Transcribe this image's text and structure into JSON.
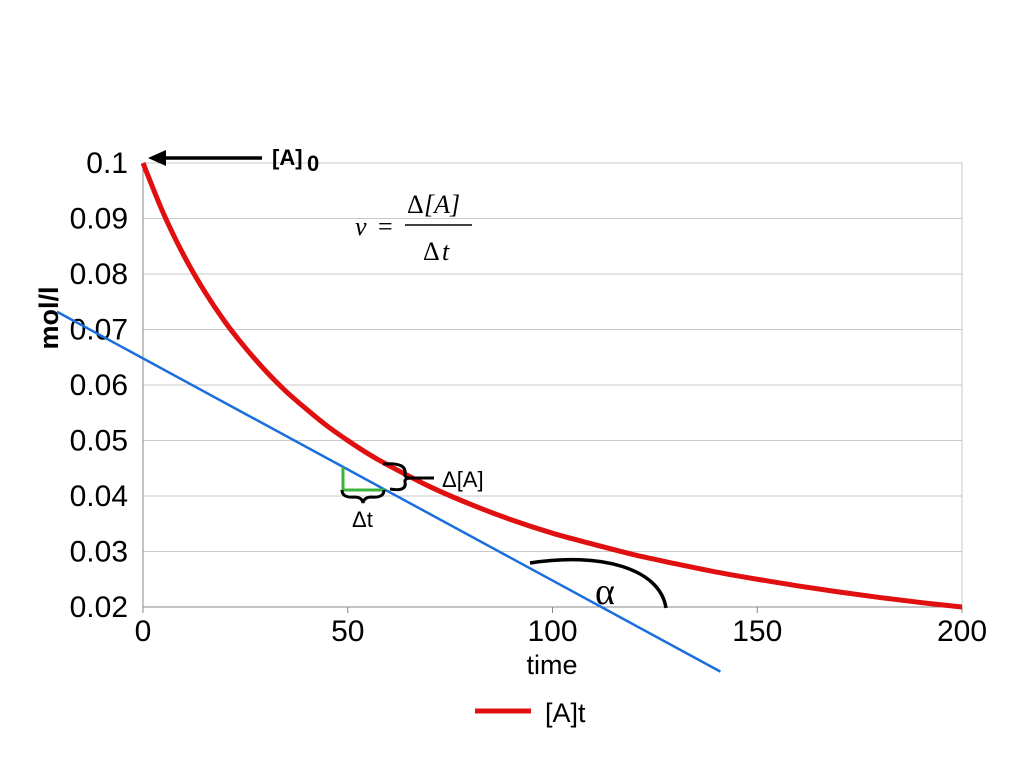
{
  "chart_data": {
    "type": "line",
    "xlabel": "time",
    "ylabel": "mol/l",
    "xlim": [
      0,
      200
    ],
    "ylim": [
      0.02,
      0.1
    ],
    "x_ticks": [
      "0",
      "50",
      "100",
      "150",
      "200"
    ],
    "y_ticks": [
      "0.1",
      "0.09",
      "0.08",
      "0.07",
      "0.06",
      "0.05",
      "0.04",
      "0.03",
      "0.02"
    ],
    "grid": "horizontal",
    "legend_position": "bottom",
    "series": [
      {
        "name": "[A]t",
        "color": "#e01010",
        "x": [
          0,
          5,
          10,
          15,
          20,
          25,
          30,
          35,
          40,
          45,
          50,
          55,
          60,
          70,
          80,
          90,
          100,
          110,
          120,
          130,
          140,
          150,
          160,
          170,
          180,
          190,
          200
        ],
        "y": [
          0.1,
          0.0909,
          0.0833,
          0.0769,
          0.0714,
          0.0667,
          0.0625,
          0.0588,
          0.0556,
          0.0526,
          0.05,
          0.0476,
          0.0455,
          0.0417,
          0.0385,
          0.0357,
          0.0333,
          0.0313,
          0.0294,
          0.0278,
          0.0263,
          0.025,
          0.0238,
          0.0227,
          0.0217,
          0.0208,
          0.02
        ]
      }
    ],
    "tangent": {
      "color": "#1a6fdc",
      "x": [
        -21,
        141
      ],
      "y": [
        0.0732,
        0.00836
      ]
    },
    "annotations": {
      "initial_label_main": "[A]",
      "initial_label_sub": "0",
      "formula_v": "v",
      "formula_eq": "=",
      "formula_num_delta": "Δ",
      "formula_num": "[A]",
      "formula_den_delta": "Δ",
      "formula_den": "t",
      "delta_a": "Δ[A]",
      "delta_t": "Δt",
      "angle": "α"
    }
  }
}
